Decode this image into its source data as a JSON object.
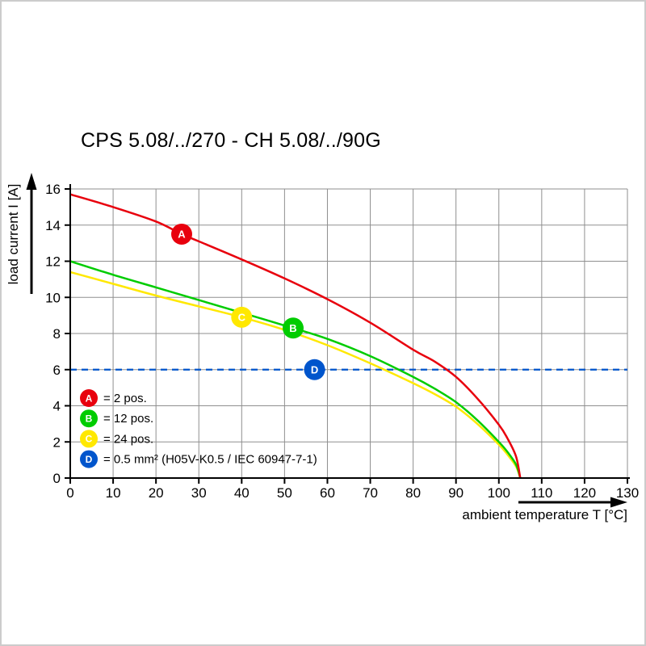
{
  "title": "CPS 5.08/../270 - CH 5.08/../90G",
  "axes": {
    "x": {
      "label": "ambient temperature T [°C]",
      "ticks": [
        0,
        10,
        20,
        30,
        40,
        50,
        60,
        70,
        80,
        90,
        100,
        110,
        120,
        130
      ]
    },
    "y": {
      "label": "load current I [A]",
      "ticks": [
        0,
        2,
        4,
        6,
        8,
        10,
        12,
        14,
        16
      ]
    }
  },
  "legend": [
    {
      "key": "A",
      "color": "#e8000d",
      "label": "= 2 pos."
    },
    {
      "key": "B",
      "color": "#00cc00",
      "label": "= 12 pos."
    },
    {
      "key": "C",
      "color": "#ffe800",
      "label": "= 24 pos."
    },
    {
      "key": "D",
      "color": "#0055cc",
      "label": "= 0.5 mm² (H05V-K0.5 / IEC 60947-7-1)"
    }
  ],
  "chart_data": {
    "type": "line",
    "title": "CPS 5.08/../270 - CH 5.08/../90G",
    "xlabel": "ambient temperature T [°C]",
    "ylabel": "load current I [A]",
    "xlim": [
      0,
      130
    ],
    "ylim": [
      0,
      16
    ],
    "grid": true,
    "legend_position": "inside bottom-left",
    "series": [
      {
        "key": "A",
        "name": "A = 2 pos.",
        "color": "#e8000d",
        "style": "solid",
        "points": [
          [
            0,
            15.7
          ],
          [
            10,
            15.0
          ],
          [
            20,
            14.2
          ],
          [
            26,
            13.5
          ],
          [
            30,
            13.1
          ],
          [
            40,
            12.1
          ],
          [
            50,
            11.05
          ],
          [
            60,
            9.9
          ],
          [
            70,
            8.6
          ],
          [
            80,
            7.1
          ],
          [
            85,
            6.45
          ],
          [
            90,
            5.6
          ],
          [
            95,
            4.4
          ],
          [
            100,
            2.95
          ],
          [
            102,
            2.2
          ],
          [
            104,
            1.2
          ],
          [
            105,
            0
          ]
        ]
      },
      {
        "key": "B",
        "name": "B = 12 pos.",
        "color": "#00cc00",
        "style": "solid",
        "points": [
          [
            0,
            12.0
          ],
          [
            10,
            11.25
          ],
          [
            20,
            10.55
          ],
          [
            30,
            9.85
          ],
          [
            40,
            9.15
          ],
          [
            52,
            8.3
          ],
          [
            60,
            7.7
          ],
          [
            70,
            6.75
          ],
          [
            80,
            5.6
          ],
          [
            85,
            4.95
          ],
          [
            90,
            4.2
          ],
          [
            95,
            3.2
          ],
          [
            100,
            2.0
          ],
          [
            102,
            1.45
          ],
          [
            104,
            0.75
          ],
          [
            105,
            0
          ]
        ]
      },
      {
        "key": "C",
        "name": "C = 24 pos.",
        "color": "#ffe800",
        "style": "solid",
        "points": [
          [
            0,
            11.4
          ],
          [
            10,
            10.75
          ],
          [
            20,
            10.1
          ],
          [
            30,
            9.5
          ],
          [
            40,
            8.9
          ],
          [
            50,
            8.2
          ],
          [
            60,
            7.35
          ],
          [
            70,
            6.35
          ],
          [
            80,
            5.25
          ],
          [
            85,
            4.65
          ],
          [
            90,
            3.95
          ],
          [
            95,
            3.0
          ],
          [
            100,
            1.85
          ],
          [
            102,
            1.3
          ],
          [
            104,
            0.65
          ],
          [
            105,
            0
          ]
        ]
      },
      {
        "key": "D",
        "name": "D = 0.5 mm² (H05V-K0.5 / IEC 60947-7-1)",
        "color": "#0055cc",
        "style": "dashed",
        "points": [
          [
            0,
            6
          ],
          [
            130,
            6
          ]
        ]
      }
    ],
    "markers": [
      {
        "key": "A",
        "x": 26,
        "y": 13.5,
        "color": "#e8000d"
      },
      {
        "key": "B",
        "x": 52,
        "y": 8.3,
        "color": "#00cc00"
      },
      {
        "key": "C",
        "x": 40,
        "y": 8.9,
        "color": "#ffe800"
      },
      {
        "key": "D",
        "x": 57,
        "y": 6.0,
        "color": "#0055cc"
      }
    ]
  }
}
